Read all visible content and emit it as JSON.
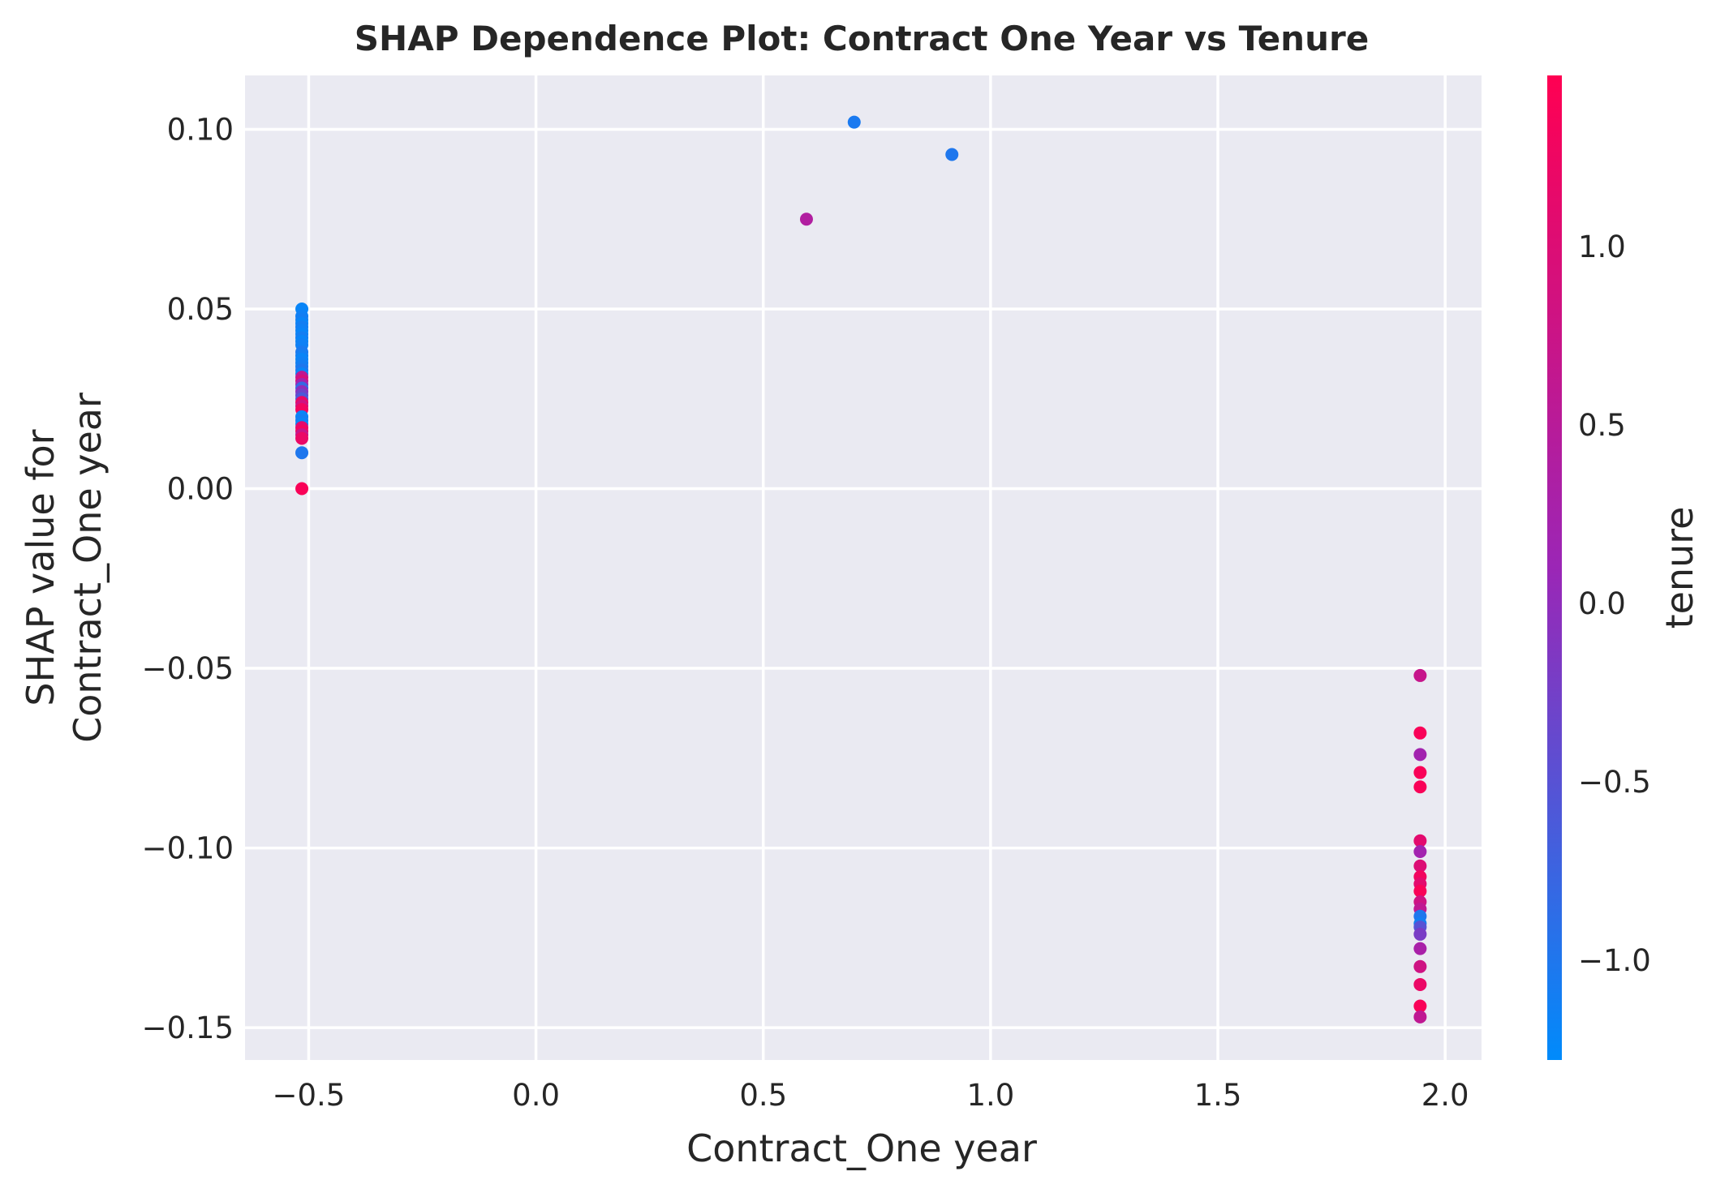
{
  "chart_data": {
    "type": "scatter",
    "title": "SHAP Dependence Plot: Contract One Year vs Tenure",
    "xlabel": "Contract_One year",
    "ylabel_lines": [
      "SHAP value for",
      "Contract_One year"
    ],
    "xlim": [
      -0.64,
      2.08
    ],
    "ylim": [
      -0.159,
      0.115
    ],
    "xticks": [
      -0.5,
      0.0,
      0.5,
      1.0,
      1.5,
      2.0
    ],
    "xtick_labels": [
      "−0.5",
      "0.0",
      "0.5",
      "1.0",
      "1.5",
      "2.0"
    ],
    "yticks": [
      0.1,
      0.05,
      0.0,
      -0.05,
      -0.1,
      -0.15
    ],
    "ytick_labels": [
      "0.10",
      "0.05",
      "0.00",
      "−0.05",
      "−0.10",
      "−0.15"
    ],
    "grid": true,
    "background_color": "#eaeaf2",
    "grid_color": "#ffffff",
    "colorbar": {
      "label": "tenure",
      "range": [
        -1.28,
        1.48
      ],
      "ticks": [
        1.0,
        0.5,
        0.0,
        -0.5,
        -1.0
      ],
      "tick_labels": [
        "1.0",
        "0.5",
        "0.0",
        "−0.5",
        "−1.0"
      ],
      "color_low": "#008bfb",
      "color_mid": "#9b26b6",
      "color_high": "#ff0052"
    },
    "points": [
      {
        "x": -0.515,
        "y": 0.05,
        "c": -1.2
      },
      {
        "x": -0.515,
        "y": 0.048,
        "c": -1.15
      },
      {
        "x": -0.515,
        "y": 0.047,
        "c": -1.1
      },
      {
        "x": -0.515,
        "y": 0.046,
        "c": -1.2
      },
      {
        "x": -0.515,
        "y": 0.045,
        "c": -1.1
      },
      {
        "x": -0.515,
        "y": 0.044,
        "c": -1.15
      },
      {
        "x": -0.515,
        "y": 0.043,
        "c": -1.2
      },
      {
        "x": -0.515,
        "y": 0.042,
        "c": -1.1
      },
      {
        "x": -0.515,
        "y": 0.041,
        "c": -1.2
      },
      {
        "x": -0.515,
        "y": 0.04,
        "c": -1.15
      },
      {
        "x": -0.515,
        "y": 0.038,
        "c": -1.05
      },
      {
        "x": -0.515,
        "y": 0.037,
        "c": -1.1
      },
      {
        "x": -0.515,
        "y": 0.036,
        "c": -1.2
      },
      {
        "x": -0.515,
        "y": 0.035,
        "c": -1.15
      },
      {
        "x": -0.515,
        "y": 0.034,
        "c": -1.1
      },
      {
        "x": -0.515,
        "y": 0.033,
        "c": -1.0
      },
      {
        "x": -0.515,
        "y": 0.032,
        "c": -1.2
      },
      {
        "x": -0.515,
        "y": 0.031,
        "c": 0.6
      },
      {
        "x": -0.515,
        "y": 0.03,
        "c": 0.9
      },
      {
        "x": -0.515,
        "y": 0.029,
        "c": 0.2
      },
      {
        "x": -0.515,
        "y": 0.028,
        "c": -0.8
      },
      {
        "x": -0.515,
        "y": 0.027,
        "c": 0.0
      },
      {
        "x": -0.515,
        "y": 0.026,
        "c": -0.3
      },
      {
        "x": -0.515,
        "y": 0.025,
        "c": -0.6
      },
      {
        "x": -0.515,
        "y": 0.024,
        "c": 1.2
      },
      {
        "x": -0.515,
        "y": 0.023,
        "c": 0.8
      },
      {
        "x": -0.515,
        "y": 0.022,
        "c": 1.3
      },
      {
        "x": -0.515,
        "y": 0.02,
        "c": -1.2
      },
      {
        "x": -0.515,
        "y": 0.019,
        "c": -1.1
      },
      {
        "x": -0.515,
        "y": 0.018,
        "c": -1.2
      },
      {
        "x": -0.515,
        "y": 0.017,
        "c": 1.1
      },
      {
        "x": -0.515,
        "y": 0.016,
        "c": 1.3
      },
      {
        "x": -0.515,
        "y": 0.015,
        "c": 0.7
      },
      {
        "x": -0.515,
        "y": 0.014,
        "c": 1.2
      },
      {
        "x": -0.515,
        "y": 0.01,
        "c": -1.0
      },
      {
        "x": -0.515,
        "y": 0.0,
        "c": 1.4
      },
      {
        "x": 0.595,
        "y": 0.075,
        "c": 0.4
      },
      {
        "x": 0.7,
        "y": 0.102,
        "c": -1.05
      },
      {
        "x": 0.915,
        "y": 0.093,
        "c": -1.0
      },
      {
        "x": 1.945,
        "y": -0.052,
        "c": 0.7
      },
      {
        "x": 1.945,
        "y": -0.068,
        "c": 1.4
      },
      {
        "x": 1.945,
        "y": -0.074,
        "c": 0.2
      },
      {
        "x": 1.945,
        "y": -0.079,
        "c": 1.4
      },
      {
        "x": 1.945,
        "y": -0.083,
        "c": 1.4
      },
      {
        "x": 1.945,
        "y": -0.098,
        "c": 1.1
      },
      {
        "x": 1.945,
        "y": -0.101,
        "c": 0.2
      },
      {
        "x": 1.945,
        "y": -0.105,
        "c": 1.0
      },
      {
        "x": 1.945,
        "y": -0.108,
        "c": 1.3
      },
      {
        "x": 1.945,
        "y": -0.11,
        "c": 1.1
      },
      {
        "x": 1.945,
        "y": -0.112,
        "c": 1.4
      },
      {
        "x": 1.945,
        "y": -0.115,
        "c": 0.8
      },
      {
        "x": 1.945,
        "y": -0.117,
        "c": 0.6
      },
      {
        "x": 1.945,
        "y": -0.119,
        "c": -1.0
      },
      {
        "x": 1.945,
        "y": -0.121,
        "c": -1.1
      },
      {
        "x": 1.945,
        "y": -0.122,
        "c": -0.5
      },
      {
        "x": 1.945,
        "y": -0.124,
        "c": -0.2
      },
      {
        "x": 1.945,
        "y": -0.128,
        "c": 0.3
      },
      {
        "x": 1.945,
        "y": -0.133,
        "c": 0.8
      },
      {
        "x": 1.945,
        "y": -0.138,
        "c": 1.2
      },
      {
        "x": 1.945,
        "y": -0.144,
        "c": 1.4
      },
      {
        "x": 1.945,
        "y": -0.147,
        "c": 0.6
      }
    ]
  }
}
